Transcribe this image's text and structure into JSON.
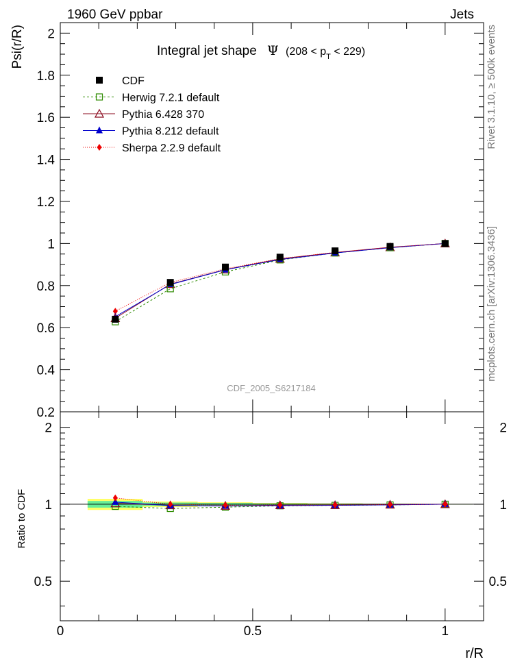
{
  "header": {
    "left": "1960 GeV ppbar",
    "right": "Jets"
  },
  "side_labels": {
    "rivet": "Rivet 3.1.10, ≥ 500k events",
    "mcplots": "mcplots.cern.ch [arXiv:1306.3436]"
  },
  "watermark": "CDF_2005_S6217184",
  "colors": {
    "cdf": "#000000",
    "herwig": "#2e8b00",
    "pythia6": "#8b0a1e",
    "pythia8": "#0000cc",
    "sherpa": "#ee0000",
    "band_yellow": "#ffff66",
    "band_green": "#66ee99"
  },
  "chart_data": [
    {
      "type": "line",
      "title": "Integral jet shape",
      "title_symbol": "Ψ",
      "title_range": "(208 < p",
      "title_range_sub": "T",
      "title_range_end": " < 229)",
      "xlabel": "r/R",
      "ylabel": "Psi(r/R)",
      "xlim": [
        0,
        1.1
      ],
      "ylim": [
        0.2,
        2.05
      ],
      "yticks": [
        0.2,
        0.4,
        0.6,
        0.8,
        1,
        1.2,
        1.4,
        1.6,
        1.8,
        2
      ],
      "ytick_labels": [
        "0.2",
        "0.4",
        "0.6",
        "0.8",
        "1",
        "1.2",
        "1.4",
        "1.6",
        "1.8",
        "2"
      ],
      "legend_position": "top-left",
      "x": [
        0.143,
        0.286,
        0.429,
        0.571,
        0.714,
        0.857,
        1.0
      ],
      "series": [
        {
          "name": "CDF",
          "key": "cdf",
          "marker": "square-filled",
          "values": [
            0.64,
            0.815,
            0.888,
            0.935,
            0.965,
            0.986,
            1.0
          ]
        },
        {
          "name": "Herwig 7.2.1 default",
          "key": "herwig",
          "marker": "square-open",
          "dash": "3,3",
          "values": [
            0.628,
            0.785,
            0.865,
            0.922,
            0.955,
            0.98,
            1.0
          ]
        },
        {
          "name": "Pythia 6.428 370",
          "key": "pythia6",
          "marker": "triangle-open",
          "dash": "",
          "values": [
            0.645,
            0.807,
            0.876,
            0.927,
            0.957,
            0.982,
            1.0
          ]
        },
        {
          "name": "Pythia 8.212 default",
          "key": "pythia8",
          "marker": "triangle-filled",
          "dash": "",
          "values": [
            0.652,
            0.805,
            0.875,
            0.924,
            0.955,
            0.98,
            1.0
          ]
        },
        {
          "name": "Sherpa 2.2.9 default",
          "key": "sherpa",
          "marker": "diamond-filled",
          "dash": "1,2",
          "values": [
            0.678,
            0.815,
            0.88,
            0.928,
            0.958,
            0.982,
            1.0
          ]
        }
      ]
    },
    {
      "type": "line",
      "title": "",
      "xlabel": "r/R",
      "ylabel": "Ratio to CDF",
      "xlim": [
        0,
        1.1
      ],
      "ylim": [
        0.35,
        2.3
      ],
      "yticks": [
        0.5,
        1,
        2
      ],
      "ytick_labels": [
        "0.5",
        "1",
        "2"
      ],
      "xticks": [
        0,
        0.5,
        1
      ],
      "xtick_labels": [
        "0",
        "0.5",
        "1"
      ],
      "x": [
        0.143,
        0.286,
        0.429,
        0.571,
        0.714,
        0.857,
        1.0
      ],
      "bin_edges": [
        0.071,
        0.214,
        0.357,
        0.5,
        0.643,
        0.786,
        0.929,
        1.071
      ],
      "band_yellow_halfwidth": [
        0.05,
        0.025,
        0.018,
        0.012,
        0.008,
        0.005,
        0.003
      ],
      "band_green_halfwidth": [
        0.03,
        0.015,
        0.011,
        0.007,
        0.005,
        0.003,
        0.002
      ],
      "series": [
        {
          "name": "Herwig 7.2.1 default",
          "key": "herwig",
          "marker": "square-open",
          "dash": "3,3",
          "values": [
            0.981,
            0.963,
            0.974,
            0.986,
            0.99,
            0.994,
            1.0
          ]
        },
        {
          "name": "Pythia 6.428 370",
          "key": "pythia6",
          "marker": "triangle-open",
          "dash": "",
          "values": [
            1.008,
            0.99,
            0.986,
            0.991,
            0.992,
            0.996,
            1.0
          ]
        },
        {
          "name": "Pythia 8.212 default",
          "key": "pythia8",
          "marker": "triangle-filled",
          "dash": "",
          "values": [
            1.019,
            0.988,
            0.985,
            0.988,
            0.99,
            0.994,
            1.0
          ]
        },
        {
          "name": "Sherpa 2.2.9 default",
          "key": "sherpa",
          "marker": "diamond-filled",
          "dash": "1,2",
          "values": [
            1.059,
            1.0,
            0.991,
            0.993,
            0.993,
            0.996,
            1.0
          ]
        }
      ]
    }
  ]
}
